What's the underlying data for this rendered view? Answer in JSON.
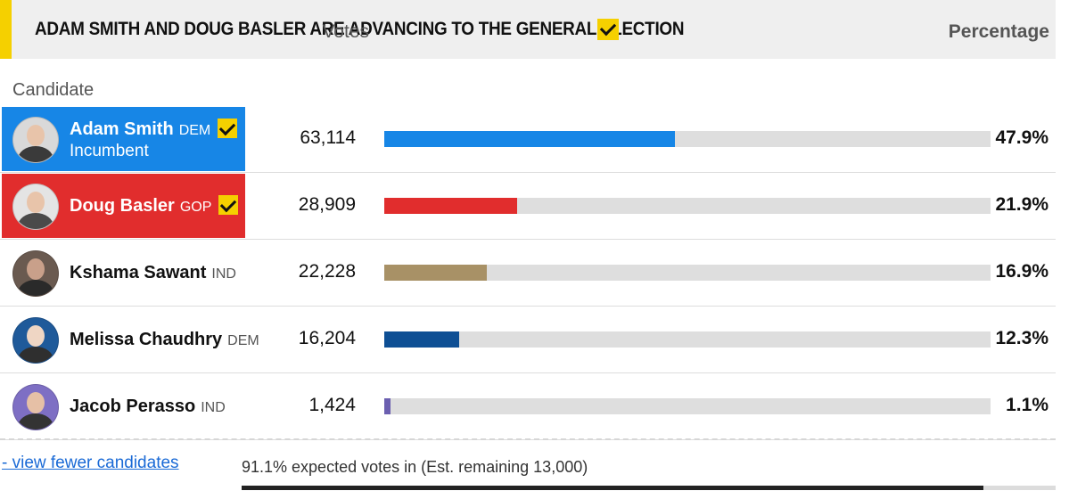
{
  "banner": {
    "text": "ADAM SMITH AND DOUG BASLER ARE ADVANCING TO THE GENERAL ELECTION",
    "accent": "#f5d000"
  },
  "headers": {
    "candidate": "Candidate",
    "votes": "Votes",
    "percentage": "Percentage"
  },
  "candidates": [
    {
      "name": "Adam Smith",
      "party": "DEM",
      "status": "Incumbent",
      "advancing": true,
      "votes": "63,114",
      "percentage": "47.9%",
      "share": 0.479,
      "color": "#1786e6",
      "row_bg": "#1786e6"
    },
    {
      "name": "Doug Basler",
      "party": "GOP",
      "status": "",
      "advancing": true,
      "votes": "28,909",
      "percentage": "21.9%",
      "share": 0.219,
      "color": "#e12d2d",
      "row_bg": "#e12d2d"
    },
    {
      "name": "Kshama Sawant",
      "party": "IND",
      "status": "",
      "advancing": false,
      "votes": "22,228",
      "percentage": "16.9%",
      "share": 0.169,
      "color": "#a89166"
    },
    {
      "name": "Melissa Chaudhry",
      "party": "DEM",
      "status": "",
      "advancing": false,
      "votes": "16,204",
      "percentage": "12.3%",
      "share": 0.123,
      "color": "#0e4f94"
    },
    {
      "name": "Jacob Perasso",
      "party": "IND",
      "status": "",
      "advancing": false,
      "votes": "1,424",
      "percentage": "1.1%",
      "share": 0.011,
      "color": "#6b5fb0"
    }
  ],
  "footer": {
    "view_fewer": "- view fewer candidates",
    "expected_text": "91.1% expected votes in (Est. remaining 13,000)",
    "expected_share": 0.911
  }
}
